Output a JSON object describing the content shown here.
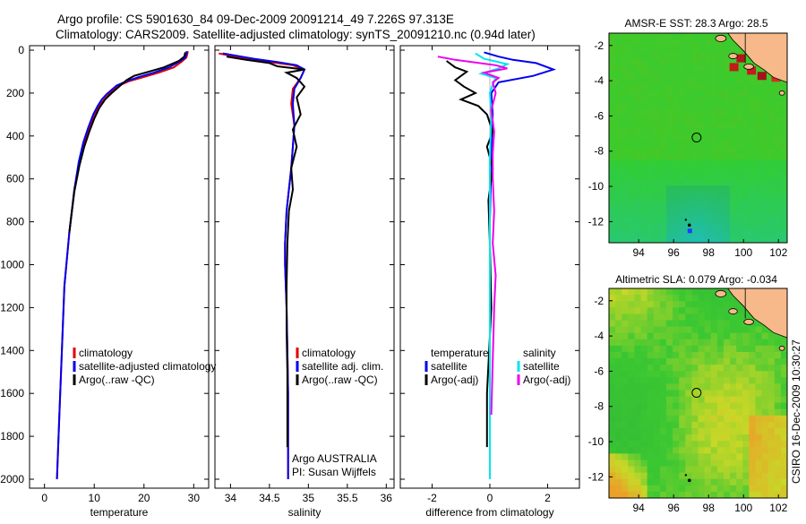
{
  "header": {
    "line1": "Argo profile: CS 5901630_84 09-Dec-2009 20091214_49 7.226S 97.313E",
    "line2": "Climatology: CARS2009. Satellite-adjusted climatology: synTS_20091210.nc (0.94d later)"
  },
  "side_label": "CSIRO 16-Dec-2009 10:30:27",
  "colors": {
    "climatology": "#e00000",
    "satellite": "#0000ee",
    "argo": "#000000",
    "sal_satellite": "#00e5ee",
    "sal_argo": "#ee00ee",
    "land": "#f7b98a"
  },
  "chart_data": [
    {
      "type": "line",
      "name": "temperature-profile",
      "xlabel": "temperature",
      "ylabel": "",
      "xlim": [
        -3,
        33
      ],
      "ylim": [
        2080,
        0
      ],
      "xticks": [
        0,
        10,
        20,
        30
      ],
      "yticks": [
        0,
        200,
        400,
        600,
        800,
        1000,
        1200,
        1400,
        1600,
        1800,
        2000
      ],
      "series": [
        {
          "name": "climatology",
          "color": "climatology",
          "x": [
            28.8,
            28.7,
            28.5,
            27.5,
            26,
            23,
            20,
            17,
            15,
            14,
            13,
            12,
            11,
            10,
            9,
            8,
            7,
            6,
            5,
            4,
            3.5,
            3,
            2.5
          ],
          "y": [
            5,
            20,
            35,
            55,
            80,
            105,
            125,
            145,
            165,
            185,
            205,
            230,
            260,
            300,
            360,
            430,
            520,
            650,
            850,
            1100,
            1400,
            1700,
            2000
          ]
        },
        {
          "name": "satellite-adjusted climatology",
          "color": "satellite",
          "x": [
            28.6,
            28.5,
            28.3,
            27,
            25,
            22,
            19,
            16.5,
            14.5,
            13.5,
            12.5,
            11.5,
            10.7,
            9.8,
            8.8,
            7.8,
            6.9,
            6,
            5,
            4,
            3.5,
            3,
            2.5
          ],
          "y": [
            5,
            20,
            35,
            55,
            80,
            105,
            125,
            145,
            165,
            185,
            205,
            230,
            260,
            300,
            360,
            430,
            520,
            650,
            850,
            1100,
            1400,
            1700,
            2000
          ]
        },
        {
          "name": "Argo(..raw -QC)",
          "color": "argo",
          "x": [
            28.3,
            28.1,
            27,
            24,
            21,
            18,
            16.5,
            15.5,
            14.5,
            13.5,
            12.2,
            11,
            10,
            9,
            8,
            7,
            6,
            5
          ],
          "y": [
            10,
            30,
            50,
            80,
            100,
            120,
            140,
            160,
            180,
            200,
            230,
            270,
            320,
            380,
            450,
            540,
            660,
            850
          ]
        }
      ],
      "legend": [
        "climatology",
        "satellite-adjusted climatology",
        "Argo(..raw -QC)"
      ],
      "legend_position": "lower-right"
    },
    {
      "type": "line",
      "name": "salinity-profile",
      "xlabel": "salinity",
      "xlim": [
        33.8,
        36.1
      ],
      "ylim": [
        2080,
        0
      ],
      "xticks": [
        34,
        34.5,
        35,
        35.5,
        36
      ],
      "series": [
        {
          "name": "climatology",
          "color": "climatology",
          "x": [
            33.85,
            34.2,
            34.5,
            34.8,
            34.95,
            34.9,
            34.8,
            34.78,
            34.82,
            34.8,
            34.78,
            34.75,
            34.72,
            34.7,
            34.7,
            34.72,
            34.73,
            34.74,
            34.74,
            34.74
          ],
          "y": [
            15,
            40,
            55,
            70,
            90,
            130,
            180,
            250,
            350,
            450,
            550,
            650,
            750,
            900,
            1000,
            1200,
            1400,
            1600,
            1800,
            2000
          ]
        },
        {
          "name": "satellite adj. clim.",
          "color": "satellite",
          "x": [
            33.9,
            34.3,
            34.6,
            34.85,
            34.95,
            34.9,
            34.82,
            34.8,
            34.82,
            34.8,
            34.78,
            34.75,
            34.72,
            34.7,
            34.7,
            34.72,
            34.73,
            34.74,
            34.74,
            34.74
          ],
          "y": [
            15,
            40,
            55,
            70,
            90,
            130,
            180,
            250,
            350,
            450,
            550,
            650,
            750,
            900,
            1000,
            1200,
            1400,
            1600,
            1800,
            2000
          ]
        },
        {
          "name": "Argo(..raw -QC)",
          "color": "argo",
          "x": [
            33.95,
            34.2,
            34.5,
            34.6,
            34.95,
            34.72,
            34.85,
            34.95,
            34.85,
            34.9,
            34.8,
            34.85,
            34.78,
            34.8,
            34.75,
            34.73,
            34.72,
            34.72,
            34.73,
            34.73,
            34.73
          ],
          "y": [
            30,
            45,
            60,
            75,
            90,
            105,
            130,
            170,
            220,
            300,
            370,
            450,
            550,
            650,
            750,
            900,
            1100,
            1300,
            1500,
            1700,
            1850
          ]
        }
      ],
      "legend": [
        "climatology",
        "satellite adj. clim.",
        "Argo(..raw -QC)"
      ],
      "legend_position": "lower-right",
      "annotations": [
        "Argo AUSTRALIA",
        "PI: Susan Wijffels"
      ]
    },
    {
      "type": "line",
      "name": "difference-profile",
      "xlabel": "difference from climatology",
      "xlim": [
        -3.1,
        3.1
      ],
      "ylim": [
        2080,
        0
      ],
      "xticks": [
        -2,
        0,
        2
      ],
      "series": [
        {
          "name": "temperature satellite",
          "color": "satellite",
          "x": [
            -0.2,
            0.3,
            0.8,
            1.6,
            2.2,
            1.5,
            0.3,
            0.05,
            0.1,
            0.05,
            0,
            0,
            0,
            0,
            0
          ],
          "y": [
            10,
            30,
            45,
            60,
            90,
            120,
            150,
            200,
            300,
            500,
            800,
            1100,
            1400,
            1700,
            2000
          ]
        },
        {
          "name": "temperature Argo(-adj)",
          "color": "argo",
          "x": [
            -1.5,
            -1.2,
            -0.8,
            -1.2,
            -0.9,
            -0.5,
            -1.0,
            -0.4,
            -0.1,
            0.1,
            -0.1,
            0.1,
            -0.05,
            0,
            0.05,
            -0.1,
            -0.1
          ],
          "y": [
            50,
            80,
            100,
            140,
            170,
            200,
            230,
            260,
            300,
            380,
            450,
            550,
            700,
            900,
            1200,
            1600,
            1850
          ]
        },
        {
          "name": "salinity satellite",
          "color": "sal_satellite",
          "x": [
            -0.5,
            -0.2,
            0.6,
            0.3,
            -0.3,
            0.2,
            0.1,
            0,
            0.05,
            0,
            0,
            0,
            0,
            0,
            0
          ],
          "y": [
            15,
            40,
            65,
            85,
            110,
            130,
            160,
            200,
            300,
            500,
            800,
            1100,
            1400,
            1700,
            2000
          ]
        },
        {
          "name": "salinity Argo(-adj)",
          "color": "sal_argo",
          "x": [
            -1.8,
            -1.2,
            0.2,
            0.6,
            -0.2,
            0.3,
            0.1,
            0.2,
            0.05,
            0.15,
            0.1,
            0.1,
            0.15,
            0.1,
            0.2,
            0.15,
            0.1,
            0.05
          ],
          "y": [
            30,
            45,
            70,
            85,
            105,
            130,
            150,
            200,
            280,
            380,
            480,
            600,
            750,
            900,
            1050,
            1200,
            1450,
            1700
          ]
        }
      ],
      "legend_headers": [
        "temperature",
        "salinity"
      ],
      "legend": [
        "satellite",
        "Argo(-adj)",
        "satellite",
        "Argo(-adj)"
      ],
      "legend_position": "lower-middle"
    },
    {
      "type": "heatmap",
      "name": "sst-map",
      "title": "AMSR-E SST: 28.3 Argo: 28.5",
      "xlim": [
        92.3,
        102.5
      ],
      "ylim": [
        -13.2,
        -1.3
      ],
      "xticks": [
        94,
        96,
        98,
        100,
        102
      ],
      "yticks": [
        -2,
        -4,
        -6,
        -8,
        -10,
        -12
      ],
      "float_position": [
        97.313,
        -7.226
      ]
    },
    {
      "type": "heatmap",
      "name": "sla-map",
      "title": "Altimetric SLA: 0.079 Argo: -0.034",
      "xlim": [
        92.3,
        102.5
      ],
      "ylim": [
        -13.2,
        -1.3
      ],
      "xticks": [
        94,
        96,
        98,
        100,
        102
      ],
      "yticks": [
        -2,
        -4,
        -6,
        -8,
        -10,
        -12
      ],
      "float_position": [
        97.313,
        -7.226
      ]
    }
  ]
}
